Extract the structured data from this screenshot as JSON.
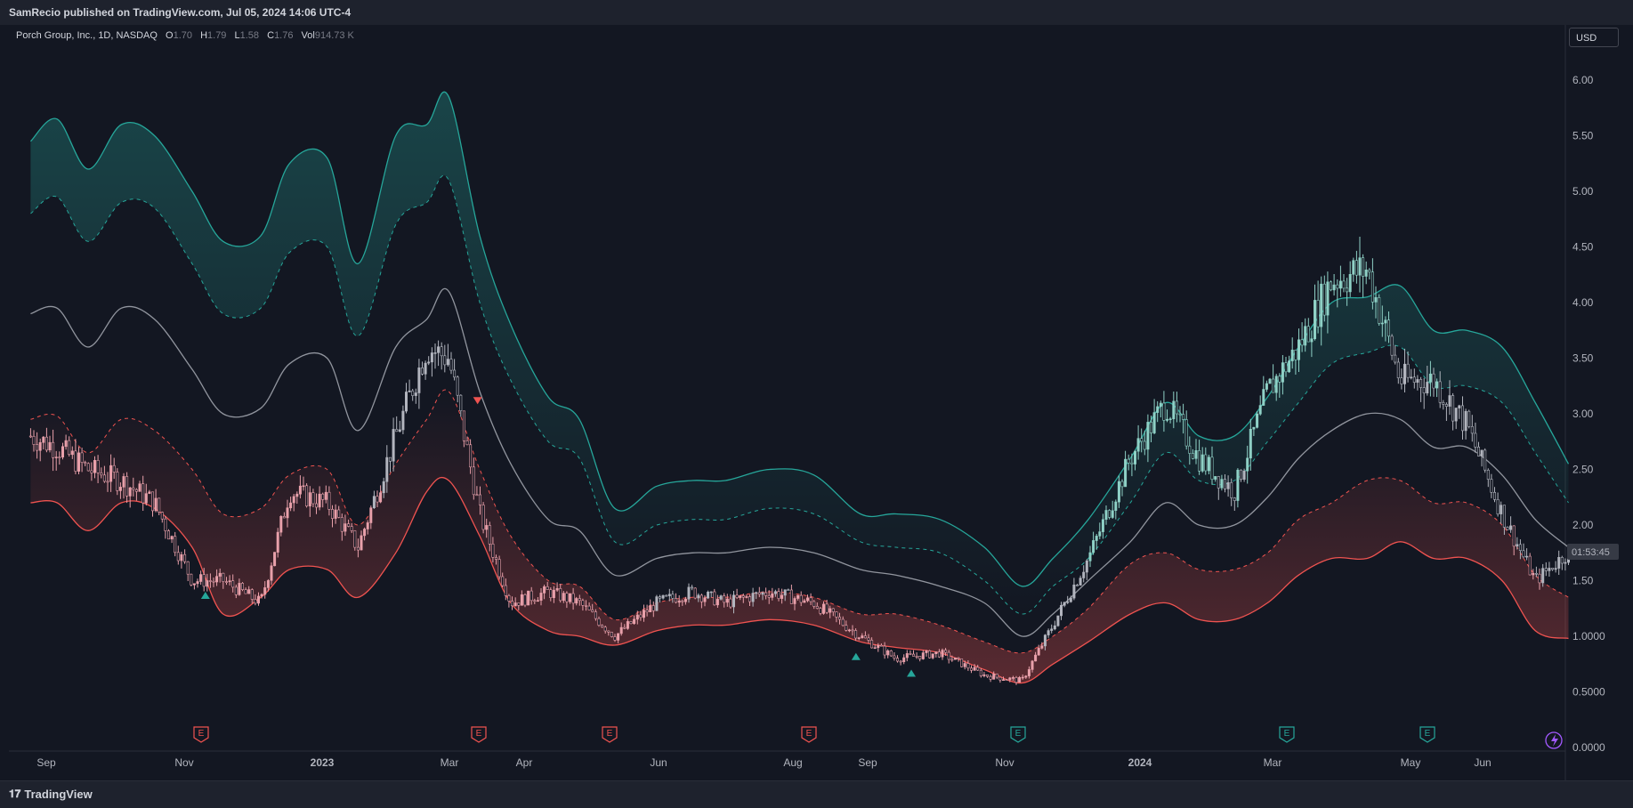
{
  "header": {
    "published": "SamRecio published on TradingView.com, Jul 05, 2024 14:06 UTC-4"
  },
  "legend": {
    "symbol": "Porch Group, Inc., 1D, NASDAQ",
    "o_label": "O",
    "o": "1.70",
    "h_label": "H",
    "h": "1.79",
    "l_label": "L",
    "l": "1.58",
    "c_label": "C",
    "c": "1.76",
    "vol_label": "Vol",
    "vol": "914.73 K"
  },
  "currency": "USD",
  "countdown": "01:53:45",
  "footer": {
    "brand": "TradingView"
  },
  "colors": {
    "background": "#131722",
    "up": "#26a69a",
    "down": "#ef5350",
    "candle": "#b2b5be",
    "basis": "#b2b5be"
  },
  "earnings_icons": [
    {
      "x": "Oct 28",
      "color": "#ef5350",
      "label": "E"
    },
    {
      "x": "Feb 28",
      "color": "#ef5350",
      "label": "E"
    },
    {
      "x": "May 18",
      "color": "#ef5350",
      "label": "E"
    },
    {
      "x": "Aug 18",
      "color": "#ef5350",
      "label": "E"
    },
    {
      "x": "Nov 8",
      "color": "#26a69a",
      "label": "E"
    },
    {
      "x": "Mar 8",
      "color": "#26a69a",
      "label": "E"
    },
    {
      "x": "May 10",
      "color": "#26a69a",
      "label": "E"
    }
  ],
  "chart_data": {
    "type": "line",
    "title": "",
    "xlabel": "",
    "ylabel": "",
    "ylim": [
      0,
      6.3
    ],
    "x_ticks": [
      "Sep",
      "Nov",
      "2023",
      "Mar",
      "Apr",
      "Jun",
      "Aug",
      "Sep",
      "Nov",
      "2024",
      "Mar",
      "May",
      "Jun"
    ],
    "y_ticks": [
      "6.00",
      "5.50",
      "5.00",
      "4.50",
      "4.00",
      "3.50",
      "3.00",
      "2.50",
      "2.00",
      "1.50",
      "1.0000",
      "0.5000",
      "0.0000"
    ],
    "y_tick_values": [
      6.0,
      5.5,
      5.0,
      4.5,
      4.0,
      3.5,
      3.0,
      2.5,
      2.0,
      1.5,
      1.0,
      0.5,
      0.0
    ],
    "last_price": 1.76,
    "series": [
      {
        "name": "Upper band",
        "style": "solid",
        "color": "#26a69a",
        "x": [
          "Aug 10",
          "Aug 22",
          "Sep 5",
          "Sep 20",
          "Oct 5",
          "Oct 22",
          "Nov 5",
          "Nov 22",
          "Dec 5",
          "Dec 22",
          "Jan 5",
          "Jan 22",
          "Feb 5",
          "Feb 15",
          "Mar 1",
          "Mar 15",
          "Apr 1",
          "Apr 15",
          "May 1",
          "May 20",
          "Jun 5",
          "Jun 20",
          "Jul 10",
          "Jul 30",
          "Aug 20",
          "Sep 5",
          "Sep 25",
          "Oct 15",
          "Nov 1",
          "Nov 15",
          "Dec 1",
          "Dec 20",
          "Jan 5",
          "Jan 20",
          "Feb 5",
          "Feb 20",
          "Mar 5",
          "Mar 20",
          "Apr 5",
          "Apr 20",
          "May 5",
          "May 20",
          "Jun 5",
          "Jun 20",
          "Jul 5"
        ],
        "values": [
          5.45,
          5.65,
          5.2,
          5.6,
          5.5,
          5.0,
          4.55,
          4.6,
          5.25,
          5.3,
          4.35,
          5.5,
          5.6,
          5.85,
          4.6,
          3.8,
          3.15,
          2.95,
          2.15,
          2.35,
          2.4,
          2.4,
          2.5,
          2.45,
          2.1,
          2.1,
          2.05,
          1.8,
          1.45,
          1.7,
          2.05,
          2.6,
          3.1,
          2.8,
          2.8,
          3.15,
          3.6,
          4.0,
          4.05,
          4.15,
          3.75,
          3.75,
          3.6,
          3.1,
          2.55
        ]
      },
      {
        "name": "Upper mid",
        "style": "dashed",
        "color": "#26a69a",
        "x": [
          "Aug 10",
          "Aug 22",
          "Sep 5",
          "Sep 20",
          "Oct 5",
          "Oct 22",
          "Nov 5",
          "Nov 22",
          "Dec 5",
          "Dec 22",
          "Jan 5",
          "Jan 22",
          "Feb 5",
          "Feb 15",
          "Mar 1",
          "Mar 15",
          "Apr 1",
          "Apr 15",
          "May 1",
          "May 20",
          "Jun 5",
          "Jun 20",
          "Jul 10",
          "Jul 30",
          "Aug 20",
          "Sep 5",
          "Sep 25",
          "Oct 15",
          "Nov 1",
          "Nov 15",
          "Dec 1",
          "Dec 20",
          "Jan 5",
          "Jan 20",
          "Feb 5",
          "Feb 20",
          "Mar 5",
          "Mar 20",
          "Apr 5",
          "Apr 20",
          "May 5",
          "May 20",
          "Jun 5",
          "Jun 20",
          "Jul 5"
        ],
        "values": [
          4.8,
          4.95,
          4.55,
          4.9,
          4.85,
          4.35,
          3.9,
          3.95,
          4.45,
          4.5,
          3.7,
          4.7,
          4.9,
          5.1,
          4.0,
          3.3,
          2.75,
          2.6,
          1.85,
          2.0,
          2.05,
          2.05,
          2.15,
          2.1,
          1.85,
          1.8,
          1.75,
          1.5,
          1.2,
          1.45,
          1.7,
          2.2,
          2.65,
          2.4,
          2.4,
          2.75,
          3.1,
          3.45,
          3.55,
          3.6,
          3.25,
          3.25,
          3.1,
          2.65,
          2.2
        ]
      },
      {
        "name": "Basis",
        "style": "solid",
        "color": "#b2b5be",
        "x": [
          "Aug 10",
          "Aug 22",
          "Sep 5",
          "Sep 20",
          "Oct 5",
          "Oct 22",
          "Nov 5",
          "Nov 22",
          "Dec 5",
          "Dec 22",
          "Jan 5",
          "Jan 22",
          "Feb 5",
          "Feb 15",
          "Mar 1",
          "Mar 15",
          "Apr 1",
          "Apr 15",
          "May 1",
          "May 20",
          "Jun 5",
          "Jun 20",
          "Jul 10",
          "Jul 30",
          "Aug 20",
          "Sep 5",
          "Sep 25",
          "Oct 15",
          "Nov 1",
          "Nov 15",
          "Dec 1",
          "Dec 20",
          "Jan 5",
          "Jan 20",
          "Feb 5",
          "Feb 20",
          "Mar 5",
          "Mar 20",
          "Apr 5",
          "Apr 20",
          "May 5",
          "May 20",
          "Jun 5",
          "Jun 20",
          "Jul 5"
        ],
        "values": [
          3.9,
          3.95,
          3.6,
          3.95,
          3.85,
          3.4,
          3.0,
          3.05,
          3.45,
          3.5,
          2.85,
          3.6,
          3.85,
          4.1,
          3.2,
          2.55,
          2.05,
          1.95,
          1.55,
          1.7,
          1.75,
          1.75,
          1.8,
          1.75,
          1.6,
          1.55,
          1.45,
          1.3,
          1.0,
          1.2,
          1.5,
          1.85,
          2.2,
          2.0,
          2.0,
          2.25,
          2.6,
          2.85,
          3.0,
          2.95,
          2.7,
          2.7,
          2.45,
          2.05,
          1.8
        ]
      },
      {
        "name": "Lower mid",
        "style": "dashed",
        "color": "#ef5350",
        "x": [
          "Aug 10",
          "Aug 22",
          "Sep 5",
          "Sep 20",
          "Oct 5",
          "Oct 22",
          "Nov 5",
          "Nov 22",
          "Dec 5",
          "Dec 22",
          "Jan 5",
          "Jan 22",
          "Feb 5",
          "Feb 15",
          "Mar 1",
          "Mar 15",
          "Apr 1",
          "Apr 15",
          "May 1",
          "May 20",
          "Jun 5",
          "Jun 20",
          "Jul 10",
          "Jul 30",
          "Aug 20",
          "Sep 5",
          "Sep 25",
          "Oct 15",
          "Nov 1",
          "Nov 15",
          "Dec 1",
          "Dec 20",
          "Jan 5",
          "Jan 20",
          "Feb 5",
          "Feb 20",
          "Mar 5",
          "Mar 20",
          "Apr 5",
          "Apr 20",
          "May 5",
          "May 20",
          "Jun 5",
          "Jun 20",
          "Jul 5"
        ],
        "values": [
          2.95,
          2.98,
          2.65,
          2.95,
          2.85,
          2.5,
          2.1,
          2.15,
          2.45,
          2.5,
          2.0,
          2.55,
          2.95,
          3.2,
          2.5,
          1.9,
          1.5,
          1.45,
          1.15,
          1.3,
          1.35,
          1.35,
          1.4,
          1.35,
          1.2,
          1.2,
          1.1,
          0.95,
          0.85,
          1.0,
          1.25,
          1.65,
          1.75,
          1.6,
          1.6,
          1.75,
          2.05,
          2.2,
          2.4,
          2.4,
          2.2,
          2.2,
          2.0,
          1.55,
          1.35
        ]
      },
      {
        "name": "Lower band",
        "style": "solid",
        "color": "#ef5350",
        "x": [
          "Aug 10",
          "Aug 22",
          "Sep 5",
          "Sep 20",
          "Oct 5",
          "Oct 22",
          "Nov 5",
          "Nov 22",
          "Dec 5",
          "Dec 22",
          "Jan 5",
          "Jan 22",
          "Feb 5",
          "Feb 15",
          "Mar 1",
          "Mar 15",
          "Apr 1",
          "Apr 15",
          "May 1",
          "May 20",
          "Jun 5",
          "Jun 20",
          "Jul 10",
          "Jul 30",
          "Aug 20",
          "Sep 5",
          "Sep 25",
          "Oct 15",
          "Nov 1",
          "Nov 15",
          "Dec 1",
          "Dec 20",
          "Jan 5",
          "Jan 20",
          "Feb 5",
          "Feb 20",
          "Mar 5",
          "Mar 20",
          "Apr 5",
          "Apr 20",
          "May 5",
          "May 20",
          "Jun 5",
          "Jun 20",
          "Jul 5"
        ],
        "values": [
          2.2,
          2.2,
          1.95,
          2.2,
          2.15,
          1.8,
          1.2,
          1.35,
          1.6,
          1.6,
          1.35,
          1.75,
          2.3,
          2.4,
          1.9,
          1.3,
          1.05,
          1.0,
          0.92,
          1.05,
          1.1,
          1.1,
          1.15,
          1.1,
          0.95,
          0.9,
          0.85,
          0.7,
          0.58,
          0.75,
          0.95,
          1.2,
          1.3,
          1.15,
          1.15,
          1.3,
          1.55,
          1.7,
          1.7,
          1.85,
          1.7,
          1.7,
          1.5,
          1.05,
          0.98
        ]
      },
      {
        "name": "Price",
        "style": "candles",
        "color": "#b2b5be",
        "x": [
          "Aug 10",
          "Aug 22",
          "Sep 5",
          "Sep 20",
          "Oct 5",
          "Oct 22",
          "Nov 5",
          "Nov 22",
          "Dec 5",
          "Dec 22",
          "Jan 5",
          "Jan 22",
          "Feb 5",
          "Feb 15",
          "Mar 1",
          "Mar 15",
          "Apr 1",
          "Apr 15",
          "May 1",
          "May 20",
          "Jun 5",
          "Jun 20",
          "Jul 10",
          "Jul 30",
          "Aug 20",
          "Sep 5",
          "Sep 25",
          "Oct 15",
          "Nov 1",
          "Nov 15",
          "Dec 1",
          "Dec 20",
          "Jan 5",
          "Jan 20",
          "Feb 5",
          "Feb 20",
          "Mar 5",
          "Mar 20",
          "Apr 5",
          "Apr 20",
          "May 5",
          "May 20",
          "Jun 5",
          "Jun 20",
          "Jul 5"
        ],
        "values": [
          2.8,
          2.7,
          2.5,
          2.4,
          2.2,
          1.5,
          1.5,
          1.3,
          2.3,
          2.2,
          1.8,
          2.8,
          3.6,
          3.5,
          2.1,
          1.3,
          1.4,
          1.3,
          1.0,
          1.3,
          1.4,
          1.3,
          1.4,
          1.3,
          1.0,
          0.8,
          0.85,
          0.65,
          0.6,
          1.1,
          1.7,
          2.6,
          3.1,
          2.6,
          2.3,
          3.2,
          3.6,
          4.2,
          4.3,
          3.3,
          3.3,
          2.9,
          2.1,
          1.5,
          1.76
        ]
      }
    ],
    "markers": [
      {
        "x": "Oct 28",
        "y": 1.4,
        "shape": "triangle-up",
        "color": "#26a69a"
      },
      {
        "x": "May 18",
        "y": 0.85,
        "shape": "triangle-up",
        "color": "#26a69a"
      },
      {
        "x": "Sep 12",
        "y": 0.7,
        "shape": "triangle-up",
        "color": "#26a69a"
      },
      {
        "x": "Feb 28",
        "y": 3.15,
        "shape": "triangle-down",
        "color": "#ef5350"
      }
    ]
  }
}
